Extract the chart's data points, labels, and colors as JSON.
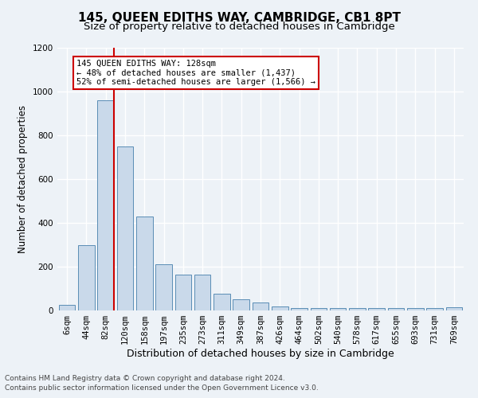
{
  "title": "145, QUEEN EDITHS WAY, CAMBRIDGE, CB1 8PT",
  "subtitle": "Size of property relative to detached houses in Cambridge",
  "xlabel": "Distribution of detached houses by size in Cambridge",
  "ylabel": "Number of detached properties",
  "categories": [
    "6sqm",
    "44sqm",
    "82sqm",
    "120sqm",
    "158sqm",
    "197sqm",
    "235sqm",
    "273sqm",
    "311sqm",
    "349sqm",
    "387sqm",
    "426sqm",
    "464sqm",
    "502sqm",
    "540sqm",
    "578sqm",
    "617sqm",
    "655sqm",
    "693sqm",
    "731sqm",
    "769sqm"
  ],
  "values": [
    25,
    300,
    960,
    750,
    430,
    210,
    165,
    165,
    75,
    50,
    35,
    20,
    12,
    10,
    10,
    10,
    10,
    10,
    10,
    12,
    15
  ],
  "bar_color": "#c9d9ea",
  "bar_edge_color": "#5a8db5",
  "vline_color": "#cc0000",
  "annotation_line1": "145 QUEEN EDITHS WAY: 128sqm",
  "annotation_line2": "← 48% of detached houses are smaller (1,437)",
  "annotation_line3": "52% of semi-detached houses are larger (1,566) →",
  "annotation_box_facecolor": "#ffffff",
  "annotation_box_edgecolor": "#cc0000",
  "footer_line1": "Contains HM Land Registry data © Crown copyright and database right 2024.",
  "footer_line2": "Contains public sector information licensed under the Open Government Licence v3.0.",
  "ylim": [
    0,
    1200
  ],
  "yticks": [
    0,
    200,
    400,
    600,
    800,
    1000,
    1200
  ],
  "background_color": "#edf2f7",
  "grid_color": "#ffffff",
  "title_fontsize": 11,
  "subtitle_fontsize": 9.5,
  "xlabel_fontsize": 9,
  "ylabel_fontsize": 8.5,
  "tick_fontsize": 7.5,
  "annot_fontsize": 7.5,
  "footer_fontsize": 6.5,
  "vline_xindex": 2.425
}
